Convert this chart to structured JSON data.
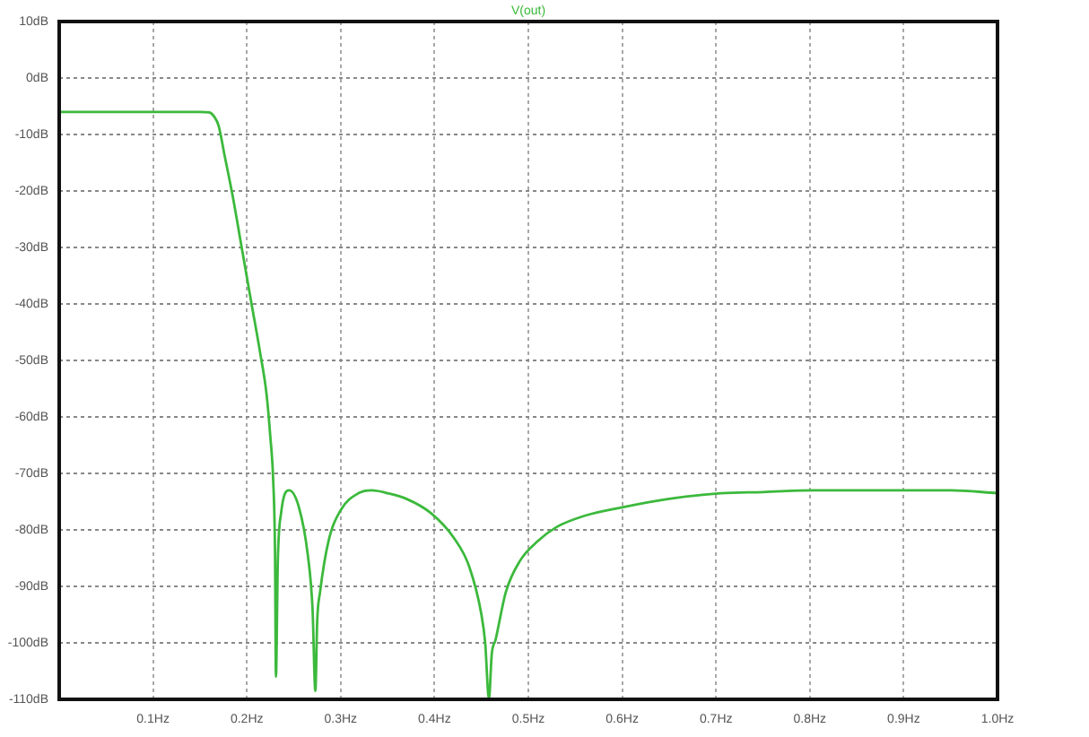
{
  "chart_data": {
    "type": "line",
    "x": [
      0,
      0.05,
      0.1,
      0.15,
      0.16,
      0.165,
      0.17,
      0.176,
      0.185,
      0.195,
      0.205,
      0.214,
      0.221,
      0.225,
      0.228,
      0.23,
      0.231,
      0.233,
      0.2365,
      0.245,
      0.2555,
      0.265,
      0.27,
      0.273,
      0.275,
      0.278,
      0.287,
      0.3,
      0.319,
      0.333,
      0.35,
      0.37,
      0.396,
      0.421,
      0.437,
      0.45,
      0.454,
      0.458,
      0.461,
      0.465,
      0.476,
      0.491,
      0.51,
      0.53,
      0.56,
      0.6,
      0.65,
      0.705,
      0.75,
      0.804,
      0.85,
      0.906,
      0.95,
      1
    ],
    "series": [
      {
        "name": "V(out)",
        "color": "#3cb93c",
        "values": [
          -6,
          -6,
          -6,
          -6,
          -6.1,
          -6.8,
          -8.5,
          -13.5,
          -21,
          -30.5,
          -40,
          -48.5,
          -56,
          -63.5,
          -71,
          -84,
          -106,
          -85.5,
          -77,
          -73,
          -76,
          -84.5,
          -94,
          -108.5,
          -96,
          -91,
          -82,
          -76.5,
          -73.5,
          -73,
          -73.5,
          -74.5,
          -77,
          -81.5,
          -86.5,
          -95,
          -100,
          -110,
          -102,
          -99.5,
          -91,
          -85.5,
          -82,
          -79.5,
          -77.5,
          -76,
          -74.5,
          -73.5,
          -73.3,
          -73,
          -73,
          -73,
          -73,
          -73.5
        ]
      }
    ],
    "xlim": [
      0,
      1
    ],
    "xticks": [
      {
        "value": 0.1,
        "label": "0.1Hz"
      },
      {
        "value": 0.2,
        "label": "0.2Hz"
      },
      {
        "value": 0.3,
        "label": "0.3Hz"
      },
      {
        "value": 0.4,
        "label": "0.4Hz"
      },
      {
        "value": 0.5,
        "label": "0.5Hz"
      },
      {
        "value": 0.6,
        "label": "0.6Hz"
      },
      {
        "value": 0.7,
        "label": "0.7Hz"
      },
      {
        "value": 0.8,
        "label": "0.8Hz"
      },
      {
        "value": 0.9,
        "label": "0.9Hz"
      },
      {
        "value": 1,
        "label": "1.0Hz"
      }
    ],
    "ylim": [
      -110,
      10
    ],
    "yticks": [
      {
        "value": 10,
        "label": "10dB"
      },
      {
        "value": 0,
        "label": "0dB"
      },
      {
        "value": -10,
        "label": "-10dB"
      },
      {
        "value": -20,
        "label": "-20dB"
      },
      {
        "value": -30,
        "label": "-30dB"
      },
      {
        "value": -40,
        "label": "-40dB"
      },
      {
        "value": -50,
        "label": "-50dB"
      },
      {
        "value": -60,
        "label": "-60dB"
      },
      {
        "value": -70,
        "label": "-70dB"
      },
      {
        "value": -80,
        "label": "-80dB"
      },
      {
        "value": -90,
        "label": "-90dB"
      },
      {
        "value": -100,
        "label": "-100dB"
      },
      {
        "value": -110,
        "label": "-110dB"
      }
    ],
    "grid": true,
    "legend": "top",
    "marker": "none",
    "line_style": "solid"
  }
}
